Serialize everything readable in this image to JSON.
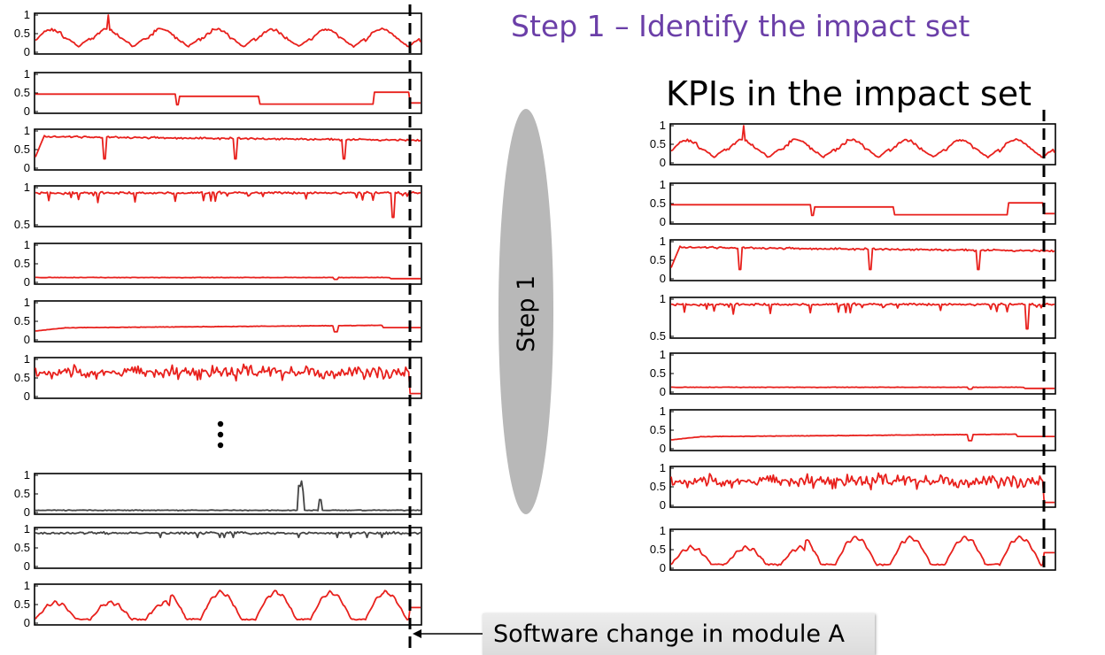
{
  "title": "Step 1 – Identify the impact set",
  "subtitle": "KPIs in the impact set",
  "step_label": "Step 1",
  "callout_text": "Software change in module A",
  "colors": {
    "title": "#6b3fa8",
    "kpi_line": "#e8201c",
    "unaffected_line": "#444444",
    "ellipse": "#b8b8b8"
  },
  "chart_data": [
    {
      "type": "line",
      "group": "all-kpis",
      "pattern": "diurnal",
      "yticks": [
        "0",
        "0.5",
        "1"
      ],
      "ylim": [
        0,
        1
      ]
    },
    {
      "type": "line",
      "group": "all-kpis",
      "pattern": "step-levels",
      "yticks": [
        "0",
        "0.5",
        "1"
      ],
      "ylim": [
        0,
        1
      ]
    },
    {
      "type": "line",
      "group": "all-kpis",
      "pattern": "high-flat-dips",
      "yticks": [
        "0",
        "0.5",
        "1"
      ],
      "ylim": [
        0,
        1
      ]
    },
    {
      "type": "line",
      "group": "all-kpis",
      "pattern": "near-one-spiky",
      "yticks": [
        "0.5",
        "1"
      ],
      "ylim": [
        0.5,
        1
      ]
    },
    {
      "type": "line",
      "group": "all-kpis",
      "pattern": "low-flat",
      "yticks": [
        "0",
        "0.5",
        "1"
      ],
      "ylim": [
        0,
        1
      ]
    },
    {
      "type": "line",
      "group": "all-kpis",
      "pattern": "slow-rise",
      "yticks": [
        "0",
        "0.5",
        "1"
      ],
      "ylim": [
        0,
        1
      ]
    },
    {
      "type": "line",
      "group": "all-kpis",
      "pattern": "noisy-mid",
      "yticks": [
        "0",
        "0.5",
        "1"
      ],
      "ylim": [
        0,
        1
      ]
    },
    {
      "type": "line",
      "group": "all-kpis",
      "pattern": "low-with-bursts",
      "affected": false,
      "yticks": [
        "0",
        "0.5",
        "1"
      ],
      "ylim": [
        0,
        1
      ]
    },
    {
      "type": "line",
      "group": "all-kpis",
      "pattern": "high-flat",
      "affected": false,
      "yticks": [
        "0",
        "0.5",
        "1"
      ],
      "ylim": [
        0,
        1
      ]
    },
    {
      "type": "line",
      "group": "all-kpis",
      "pattern": "diurnal-humps",
      "yticks": [
        "0",
        "0.5",
        "1"
      ],
      "ylim": [
        0,
        1
      ]
    },
    {
      "type": "line",
      "group": "impact-set",
      "pattern": "diurnal",
      "yticks": [
        "0",
        "0.5",
        "1"
      ],
      "ylim": [
        0,
        1
      ]
    },
    {
      "type": "line",
      "group": "impact-set",
      "pattern": "step-levels",
      "yticks": [
        "0",
        "0.5",
        "1"
      ],
      "ylim": [
        0,
        1
      ]
    },
    {
      "type": "line",
      "group": "impact-set",
      "pattern": "high-flat-dips",
      "yticks": [
        "0",
        "0.5",
        "1"
      ],
      "ylim": [
        0,
        1
      ]
    },
    {
      "type": "line",
      "group": "impact-set",
      "pattern": "near-one-spiky",
      "yticks": [
        "0.5",
        "1"
      ],
      "ylim": [
        0.5,
        1
      ]
    },
    {
      "type": "line",
      "group": "impact-set",
      "pattern": "low-flat",
      "yticks": [
        "0",
        "0.5",
        "1"
      ],
      "ylim": [
        0,
        1
      ]
    },
    {
      "type": "line",
      "group": "impact-set",
      "pattern": "slow-rise",
      "yticks": [
        "0",
        "0.5",
        "1"
      ],
      "ylim": [
        0,
        1
      ]
    },
    {
      "type": "line",
      "group": "impact-set",
      "pattern": "noisy-mid",
      "yticks": [
        "0",
        "0.5",
        "1"
      ],
      "ylim": [
        0,
        1
      ]
    },
    {
      "type": "line",
      "group": "impact-set",
      "pattern": "diurnal-humps",
      "yticks": [
        "0",
        "0.5",
        "1"
      ],
      "ylim": [
        0,
        1
      ]
    }
  ]
}
